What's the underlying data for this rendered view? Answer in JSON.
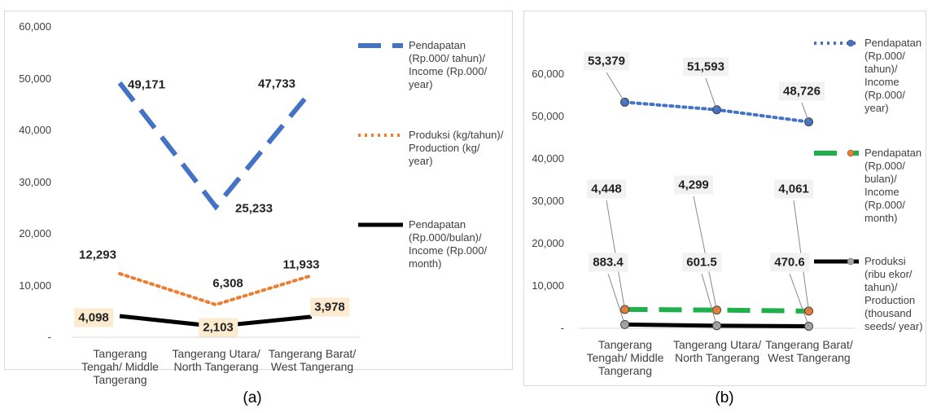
{
  "chart_data": [
    {
      "type": "line",
      "caption": "(a)",
      "categories": [
        "Tangerang Tengah/ Middle Tangerang",
        "Tangerang Utara/ North Tangerang",
        "Tangerang Barat/ West Tangerang"
      ],
      "ylim": [
        0,
        60000
      ],
      "yticks": [
        {
          "value": 0,
          "label": "-"
        },
        {
          "value": 10000,
          "label": "10,000"
        },
        {
          "value": 20000,
          "label": "20,000"
        },
        {
          "value": 30000,
          "label": "30,000"
        },
        {
          "value": 40000,
          "label": "40,000"
        },
        {
          "value": 50000,
          "label": "50,000"
        },
        {
          "value": 60000,
          "label": "60,000"
        }
      ],
      "grid": false,
      "series": [
        {
          "name": "Pendapatan (Rp.000/ tahun)/ Income (Rp.000/ year)",
          "color": "#4472c4",
          "style": "dash",
          "values": [
            49171,
            25233,
            47733
          ],
          "value_labels": [
            "49,171",
            "25,233",
            "47,733"
          ]
        },
        {
          "name": "Produksi (kg/tahun)/ Production (kg/ year)",
          "color": "#ed7d31",
          "style": "dot",
          "values": [
            12293,
            6308,
            11933
          ],
          "value_labels": [
            "12,293",
            "6,308",
            "11,933"
          ]
        },
        {
          "name": "Pendapatan (Rp.000/bulan)/ Income (Rp.000/ month)",
          "color": "#000000",
          "style": "solid",
          "values": [
            4098,
            2103,
            3978
          ],
          "value_labels": [
            "4,098",
            "2,103",
            "3,978"
          ]
        }
      ]
    },
    {
      "type": "line",
      "caption": "(b)",
      "categories": [
        "Tangerang Tengah/ Middle Tangerang",
        "Tangerang Utara/ North Tangerang",
        "Tangerang Barat/ West Tangerang"
      ],
      "ylim": [
        0,
        70000
      ],
      "yticks": [
        {
          "value": 0,
          "label": "-"
        },
        {
          "value": 10000,
          "label": "10,000"
        },
        {
          "value": 20000,
          "label": "20,000"
        },
        {
          "value": 30000,
          "label": "30,000"
        },
        {
          "value": 40000,
          "label": "40,000"
        },
        {
          "value": 50000,
          "label": "50,000"
        },
        {
          "value": 60000,
          "label": "60,000"
        }
      ],
      "grid": false,
      "series": [
        {
          "name": "Pendapatan (Rp.000/ tahun)/ Income (Rp.000/ year)",
          "color": "#4472c4",
          "style": "dot",
          "marker_color": "#4472c4",
          "values": [
            53379,
            51593,
            48726
          ],
          "value_labels": [
            "53,379",
            "51,593",
            "48,726"
          ]
        },
        {
          "name": "Pendapatan (Rp.000/ bulan)/ Income (Rp.000/ month)",
          "color": "#1fb04b",
          "style": "dash",
          "marker_color": "#ed7d31",
          "values": [
            4448,
            4299,
            4061
          ],
          "value_labels": [
            "4,448",
            "4,299",
            "4,061"
          ]
        },
        {
          "name": "Produksi (ribu ekor/ tahun)/ Production (thousand seeds/ year)",
          "color": "#000000",
          "style": "solid",
          "marker_color": "#a6a6a6",
          "values": [
            883.4,
            601.5,
            470.6
          ]
        }
      ]
    }
  ]
}
